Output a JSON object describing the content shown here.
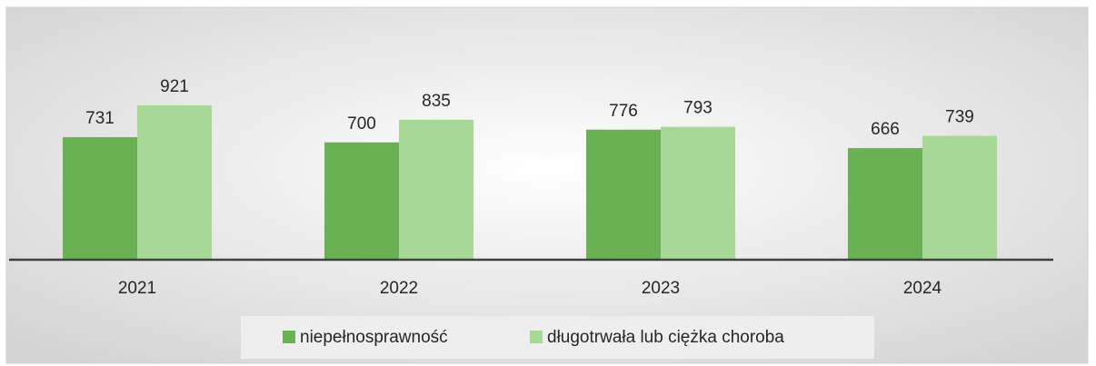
{
  "chart_data": {
    "type": "bar",
    "categories": [
      "2021",
      "2022",
      "2023",
      "2024"
    ],
    "series": [
      {
        "name": "niepełnosprawność",
        "color": "#6ab153",
        "values": [
          731,
          700,
          776,
          666
        ]
      },
      {
        "name": "długotrwała lub ciężka choroba",
        "color": "#a8d898",
        "values": [
          921,
          835,
          793,
          739
        ]
      }
    ],
    "ylim": [
      0,
      1000
    ],
    "legend": "bottom"
  }
}
